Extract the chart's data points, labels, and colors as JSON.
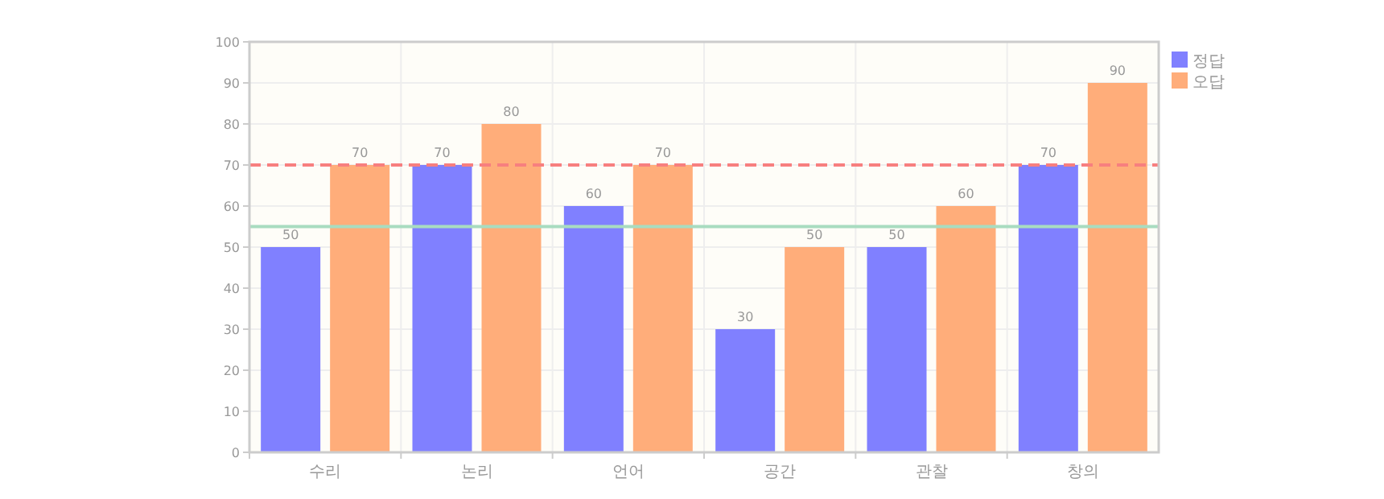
{
  "chart_data": {
    "type": "bar",
    "categories": [
      "수리",
      "논리",
      "언어",
      "공간",
      "관찰",
      "창의"
    ],
    "series": [
      {
        "name": "정답",
        "color": "#8080ff",
        "values": [
          50,
          70,
          60,
          30,
          50,
          70
        ]
      },
      {
        "name": "오답",
        "color": "#ffad7a",
        "values": [
          70,
          80,
          70,
          50,
          60,
          90
        ]
      }
    ],
    "ylim": [
      0,
      100
    ],
    "yticks": [
      0,
      10,
      20,
      30,
      40,
      50,
      60,
      70,
      80,
      90,
      100
    ],
    "grid": true,
    "legend": "top right",
    "data_labels": true,
    "ref_lines": [
      {
        "axis": "y",
        "value": 70,
        "color": "#f77f7f",
        "line_style": "dashed"
      },
      {
        "axis": "y",
        "value": 55,
        "color": "#a8dcc0",
        "line_style": "solid"
      }
    ]
  }
}
